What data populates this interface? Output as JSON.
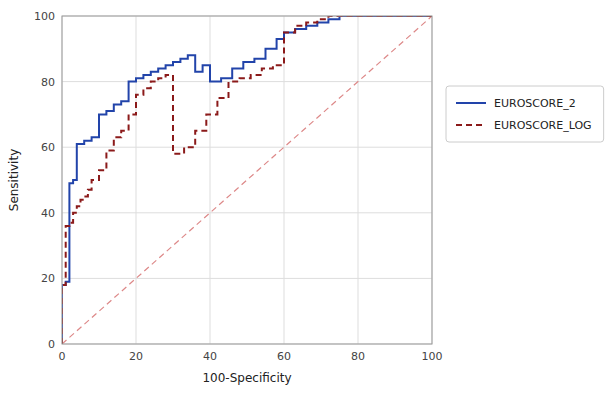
{
  "chart_data": {
    "type": "step",
    "xlabel": "100-Specificity",
    "ylabel": "Sensitivity",
    "xlim": [
      0,
      100
    ],
    "ylim": [
      0,
      100
    ],
    "xticks": [
      0,
      20,
      40,
      60,
      80,
      100
    ],
    "yticks": [
      0,
      20,
      40,
      60,
      80,
      100
    ],
    "grid": true,
    "legend": "right",
    "diagonal": {
      "x": [
        0,
        100
      ],
      "values": [
        0,
        100
      ],
      "color": "#dd8888",
      "line_style": "dashed"
    },
    "series": [
      {
        "name": "EUROSCORE_2",
        "color": "#2244aa",
        "line_style": "solid",
        "x": [
          0,
          0,
          1,
          1,
          2,
          2,
          3,
          3,
          4,
          4,
          6,
          6,
          8,
          8,
          10,
          10,
          12,
          12,
          14,
          14,
          16,
          16,
          18,
          18,
          20,
          20,
          22,
          22,
          24,
          24,
          26,
          26,
          28,
          28,
          30,
          30,
          32,
          32,
          34,
          34,
          36,
          36,
          38,
          38,
          40,
          40,
          43,
          43,
          46,
          46,
          49,
          49,
          52,
          52,
          55,
          55,
          58,
          58,
          60,
          60,
          63,
          63,
          66,
          66,
          69,
          69,
          72,
          72,
          75,
          75,
          78,
          78,
          82,
          82,
          86,
          86,
          90,
          90,
          94,
          94,
          100,
          100
        ],
        "values": [
          0,
          18,
          18,
          19,
          19,
          49,
          49,
          50,
          50,
          61,
          61,
          62,
          62,
          63,
          63,
          70,
          70,
          71,
          71,
          73,
          73,
          74,
          74,
          80,
          80,
          81,
          81,
          82,
          82,
          83,
          83,
          84,
          84,
          85,
          85,
          86,
          86,
          87,
          87,
          88,
          88,
          83,
          83,
          85,
          85,
          80,
          80,
          81,
          81,
          84,
          84,
          86,
          86,
          87,
          87,
          90,
          90,
          93,
          93,
          95,
          95,
          96,
          96,
          97,
          97,
          98,
          98,
          99,
          99,
          100,
          100,
          100,
          100,
          100,
          100,
          100,
          100,
          100,
          100,
          100,
          100,
          100
        ]
      },
      {
        "name": "EUROSCORE_LOG",
        "color": "#8b1a1a",
        "line_style": "dashed",
        "x": [
          0,
          0,
          1,
          1,
          2,
          2,
          3,
          3,
          4,
          4,
          5,
          5,
          6,
          6,
          7,
          7,
          8,
          8,
          10,
          10,
          12,
          12,
          14,
          14,
          16,
          16,
          18,
          18,
          20,
          20,
          22,
          22,
          24,
          24,
          26,
          26,
          28,
          28,
          30,
          30,
          33,
          33,
          36,
          36,
          39,
          39,
          42,
          42,
          45,
          45,
          48,
          48,
          51,
          51,
          54,
          54,
          57,
          57,
          60,
          60,
          63,
          63,
          66,
          66,
          69,
          69,
          72,
          72,
          75,
          75,
          78,
          78,
          82,
          82,
          86,
          86,
          90,
          90,
          94,
          94,
          100,
          100
        ],
        "values": [
          0,
          18,
          18,
          36,
          36,
          37,
          37,
          40,
          40,
          42,
          42,
          44,
          44,
          45,
          45,
          47,
          47,
          50,
          50,
          53,
          53,
          59,
          59,
          63,
          63,
          65,
          65,
          70,
          70,
          76,
          76,
          78,
          78,
          80,
          80,
          81,
          81,
          82,
          82,
          58,
          58,
          60,
          60,
          65,
          65,
          70,
          70,
          75,
          75,
          80,
          80,
          81,
          81,
          82,
          82,
          84,
          84,
          85,
          85,
          95,
          95,
          97,
          97,
          98,
          98,
          99,
          99,
          100,
          100,
          100,
          100,
          100,
          100,
          100,
          100,
          100,
          100,
          100,
          100,
          100,
          100,
          100
        ]
      }
    ]
  }
}
